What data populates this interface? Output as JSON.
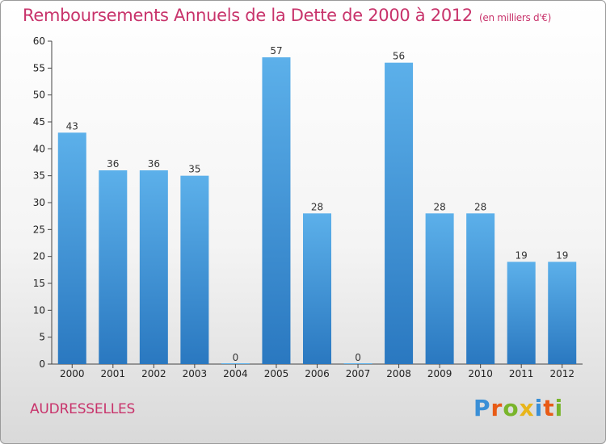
{
  "title": "Remboursements Annuels de la Dette de 2000 à 2012",
  "unit": "(en milliers d'€)",
  "commune": "AUDRESSELLES",
  "brand": {
    "letters": [
      "P",
      "r",
      "o",
      "x",
      "i",
      "t",
      "i"
    ],
    "colors": [
      "#3a8fd6",
      "#e85b16",
      "#79b52b",
      "#e8b51b",
      "#3a8fd6",
      "#e85b16",
      "#79b52b"
    ]
  },
  "colors": {
    "title": "#c8336b",
    "bar_top": "#5cb0ea",
    "bar_bottom": "#2a78c0"
  },
  "chart_data": {
    "type": "bar",
    "categories": [
      "2000",
      "2001",
      "2002",
      "2003",
      "2004",
      "2005",
      "2006",
      "2007",
      "2008",
      "2009",
      "2010",
      "2011",
      "2012"
    ],
    "values": [
      43,
      36,
      36,
      35,
      0,
      57,
      28,
      0,
      56,
      28,
      28,
      19,
      19
    ],
    "ylim": [
      0,
      60
    ],
    "yticks": [
      0,
      5,
      10,
      15,
      20,
      25,
      30,
      35,
      40,
      45,
      50,
      55,
      60
    ],
    "grid": false,
    "data_labels": true
  }
}
